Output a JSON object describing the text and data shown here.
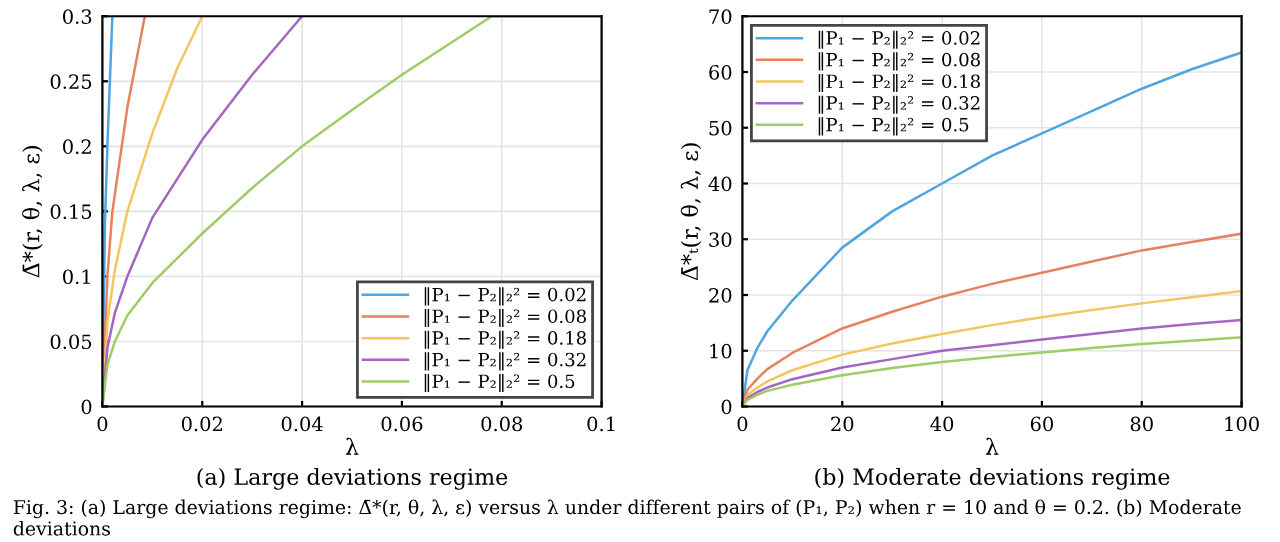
{
  "chart_data": [
    {
      "type": "line",
      "title": "(a) Large deviations regime",
      "xlabel": "λ",
      "ylabel": "Δ̄*(r, θ, λ, ε)",
      "xlim": [
        0,
        0.1
      ],
      "ylim": [
        0,
        0.3
      ],
      "xticks": [
        0,
        0.02,
        0.04,
        0.06,
        0.08,
        0.1
      ],
      "yticks": [
        0,
        0.05,
        0.1,
        0.15,
        0.2,
        0.25,
        0.3
      ],
      "grid": true,
      "legend": "bottom right",
      "annotations": [
        "Fig. 3: (a) Large deviations regime: Δ̄*(r, θ, λ, ε) versus λ under different pairs of (P₁, P₂) when r = 10 and θ = 0.2. (b) Moderate deviations"
      ],
      "series": [
        {
          "name": "‖P₁ − P₂‖₂² = 0.02",
          "color": "#4da6e0",
          "x": [
            0,
            0.0005,
            0.001,
            0.0015,
            0.002
          ],
          "values": [
            0,
            0.14,
            0.2,
            0.25,
            0.3
          ]
        },
        {
          "name": "‖P₁ − P₂‖₂² = 0.08",
          "color": "#e8825e",
          "x": [
            0,
            0.001,
            0.002,
            0.0035,
            0.005,
            0.007,
            0.0085
          ],
          "values": [
            0,
            0.1,
            0.15,
            0.19,
            0.23,
            0.27,
            0.3
          ]
        },
        {
          "name": "‖P₁ − P₂‖₂² = 0.18",
          "color": "#f2c661",
          "x": [
            0,
            0.001,
            0.0025,
            0.005,
            0.01,
            0.015,
            0.02
          ],
          "values": [
            0,
            0.065,
            0.105,
            0.15,
            0.21,
            0.26,
            0.3
          ]
        },
        {
          "name": "‖P₁ − P₂‖₂² = 0.32",
          "color": "#a466c4",
          "x": [
            0,
            0.001,
            0.0025,
            0.005,
            0.01,
            0.02,
            0.03,
            0.04
          ],
          "values": [
            0,
            0.045,
            0.072,
            0.1,
            0.145,
            0.205,
            0.255,
            0.3
          ]
        },
        {
          "name": "‖P₁ − P₂‖₂² = 0.5",
          "color": "#9fcc66",
          "x": [
            0,
            0.001,
            0.0025,
            0.005,
            0.01,
            0.02,
            0.03,
            0.04,
            0.05,
            0.06,
            0.07,
            0.078,
            0.1
          ],
          "values": [
            0,
            0.032,
            0.05,
            0.07,
            0.095,
            0.133,
            0.168,
            0.2,
            0.228,
            0.255,
            0.28,
            0.3,
            0.3
          ]
        }
      ]
    },
    {
      "type": "line",
      "title": "(b) Moderate deviations regime",
      "xlabel": "λ",
      "ylabel": "Δ̄*ₜ(r, θ, λ, ε)",
      "xlim": [
        0,
        100
      ],
      "ylim": [
        0,
        70
      ],
      "xticks": [
        0,
        20,
        40,
        60,
        80,
        100
      ],
      "yticks": [
        0,
        10,
        20,
        30,
        40,
        50,
        60,
        70
      ],
      "grid": true,
      "legend": "top left",
      "series": [
        {
          "name": "‖P₁ − P₂‖₂² = 0.02",
          "color": "#4da6e0",
          "x": [
            0,
            1,
            3,
            5,
            10,
            20,
            30,
            40,
            50,
            60,
            70,
            80,
            90,
            100
          ],
          "values": [
            0,
            6.5,
            10.5,
            13.5,
            19,
            28.5,
            35,
            40,
            45,
            49,
            53,
            57,
            60.5,
            63.5
          ]
        },
        {
          "name": "‖P₁ − P₂‖₂² = 0.08",
          "color": "#e8825e",
          "x": [
            0,
            1,
            3,
            5,
            10,
            20,
            30,
            40,
            50,
            60,
            70,
            80,
            90,
            100
          ],
          "values": [
            0,
            3,
            5,
            6.7,
            9.6,
            14,
            17,
            19.7,
            22,
            24,
            26,
            28,
            29.5,
            31
          ]
        },
        {
          "name": "‖P₁ − P₂‖₂² = 0.18",
          "color": "#f2c661",
          "x": [
            0,
            1,
            3,
            5,
            10,
            20,
            30,
            40,
            50,
            60,
            70,
            80,
            90,
            100
          ],
          "values": [
            0,
            2,
            3.4,
            4.5,
            6.5,
            9.3,
            11.3,
            13,
            14.6,
            16,
            17.3,
            18.5,
            19.6,
            20.7
          ]
        },
        {
          "name": "‖P₁ − P₂‖₂² = 0.32",
          "color": "#a466c4",
          "x": [
            0,
            1,
            3,
            5,
            10,
            20,
            30,
            40,
            50,
            60,
            70,
            80,
            90,
            100
          ],
          "values": [
            0,
            1.5,
            2.6,
            3.4,
            4.9,
            7,
            8.5,
            10,
            11,
            12,
            13,
            14,
            14.8,
            15.5
          ]
        },
        {
          "name": "‖P₁ − P₂‖₂² = 0.5",
          "color": "#9fcc66",
          "x": [
            0,
            1,
            3,
            5,
            10,
            20,
            30,
            40,
            50,
            60,
            70,
            80,
            90,
            100
          ],
          "values": [
            0,
            1.2,
            2.1,
            2.8,
            3.9,
            5.6,
            6.9,
            8,
            8.9,
            9.7,
            10.5,
            11.2,
            11.8,
            12.4
          ]
        }
      ]
    }
  ]
}
